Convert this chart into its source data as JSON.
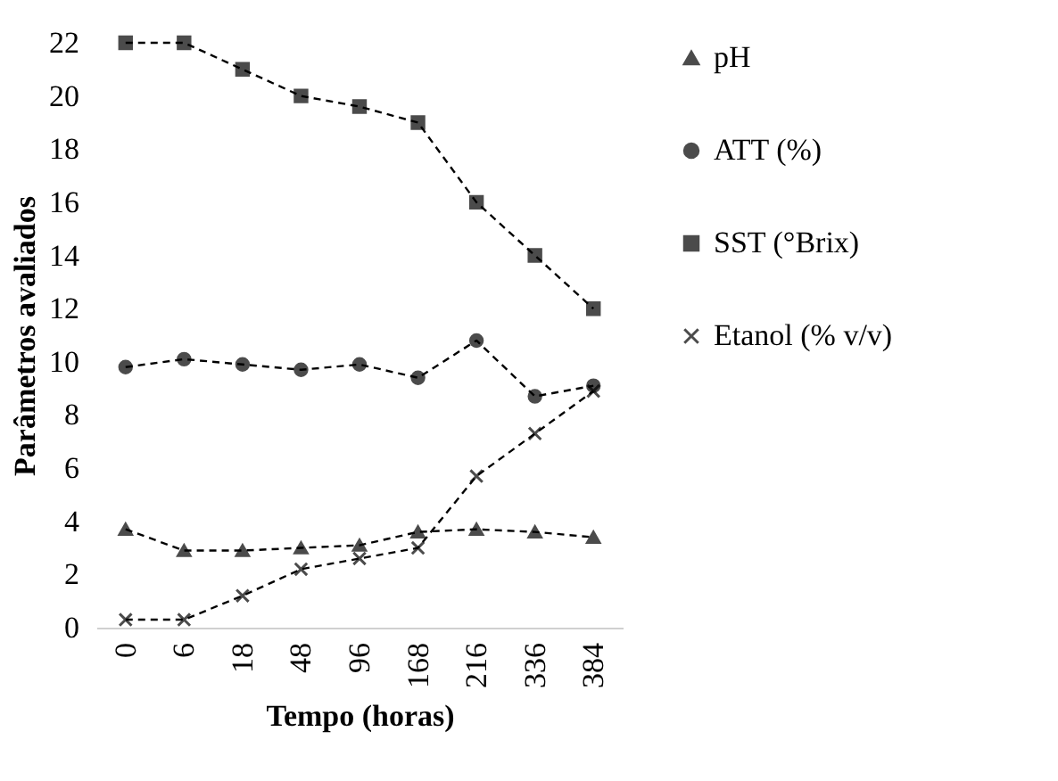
{
  "chart_data": {
    "type": "line",
    "xlabel": "Tempo (horas)",
    "ylabel": "Parâmetros avaliados",
    "categories": [
      "0",
      "6",
      "18",
      "48",
      "96",
      "168",
      "216",
      "336",
      "384"
    ],
    "ylim": [
      0,
      22
    ],
    "yticks": [
      0,
      2,
      4,
      6,
      8,
      10,
      12,
      14,
      16,
      18,
      20,
      22
    ],
    "grid": false,
    "legend": "right",
    "line_style": "dashed",
    "series": [
      {
        "name": "pH",
        "color": "#000000",
        "marker": "triangle",
        "values": [
          3.7,
          2.9,
          2.9,
          3.0,
          3.1,
          3.6,
          3.7,
          3.6,
          3.4
        ]
      },
      {
        "name": "ATT (%)",
        "color": "#000000",
        "marker": "circle",
        "values": [
          9.8,
          10.1,
          9.9,
          9.7,
          9.9,
          9.4,
          10.8,
          8.7,
          9.1
        ]
      },
      {
        "name": "SST (°Brix)",
        "color": "#000000",
        "marker": "square",
        "values": [
          22,
          22,
          21,
          20,
          19.6,
          19,
          16,
          14,
          12
        ]
      },
      {
        "name": "Etanol (% v/v)",
        "color": "#000000",
        "marker": "cross",
        "values": [
          0.3,
          0.3,
          1.2,
          2.2,
          2.6,
          3.0,
          5.7,
          7.3,
          8.9
        ]
      }
    ]
  }
}
